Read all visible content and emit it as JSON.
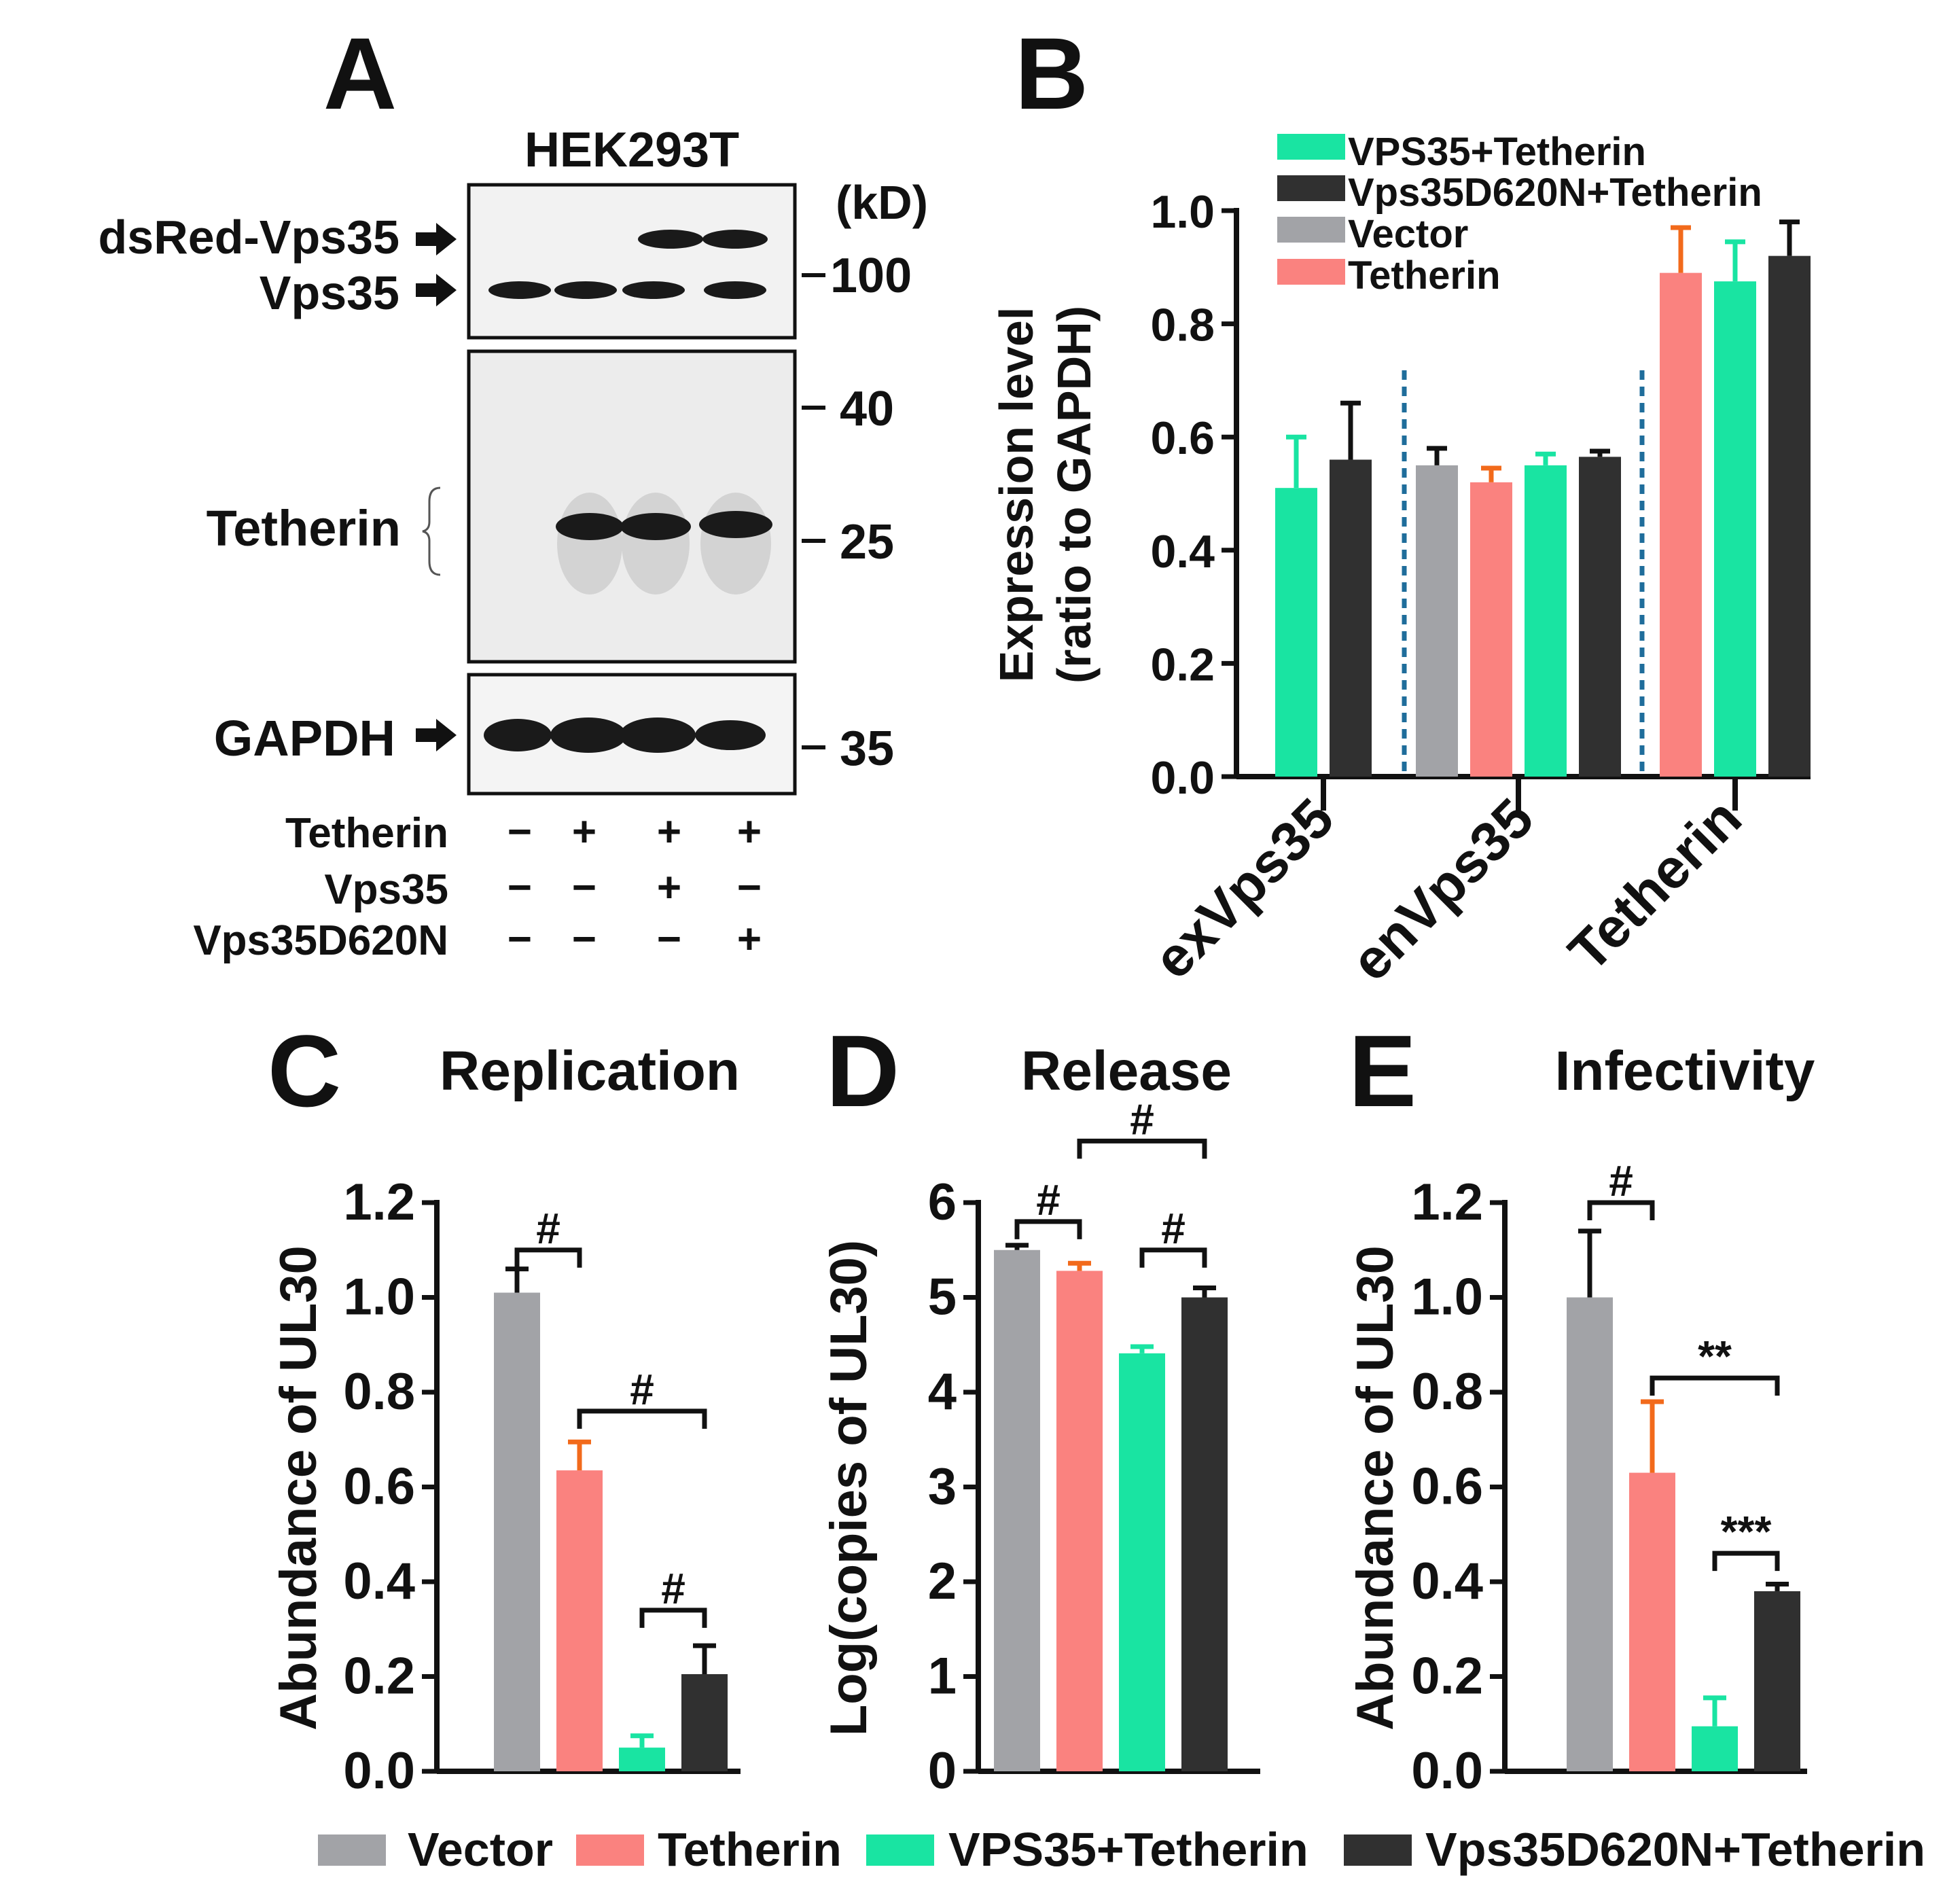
{
  "colors": {
    "vector": "#a2a3a7",
    "tetherin": "#fa827f",
    "vps35": "#19e4a2",
    "d620n": "#303030",
    "divider": "#1f6d9b",
    "errorbar_tetherin": "#f26a1b"
  },
  "western": {
    "panel_letter": "A",
    "cell_line": "HEK293T",
    "unit": "(kD)",
    "bands": {
      "dsred": "dsRed-Vps35",
      "vps35": "Vps35",
      "tetherin": "Tetherin",
      "gapdh": "GAPDH"
    },
    "markers": [
      "100",
      "40",
      "25",
      "35"
    ],
    "conditions": [
      {
        "name": "Tetherin",
        "signs": [
          "−",
          "+",
          "+",
          "+"
        ]
      },
      {
        "name": "Vps35",
        "signs": [
          "−",
          "−",
          "+",
          "−"
        ]
      },
      {
        "name": "Vps35D620N",
        "signs": [
          "−",
          "−",
          "−",
          "+"
        ]
      }
    ]
  },
  "legend_bottom": [
    "Vector",
    "Tetherin",
    "VPS35+Tetherin",
    "Vps35D620N+Tetherin"
  ],
  "chart_data": [
    {
      "panel": "B",
      "type": "bar",
      "title": "",
      "xlabel": "",
      "ylabel": "Expression level",
      "ylabel2": "(ratio to GAPDH)",
      "ylim": [
        0,
        1.0
      ],
      "yticks": [
        "0.0",
        "0.2",
        "0.4",
        "0.6",
        "0.8",
        "1.0"
      ],
      "legend": [
        "VPS35+Tetherin",
        "Vps35D620N+Tetherin",
        "Vector",
        "Tetherin"
      ],
      "categories": [
        "exVps35",
        "enVps35",
        "Tetherin"
      ],
      "groups": [
        {
          "category": "exVps35",
          "bars": [
            {
              "series": "VPS35+Tetherin",
              "value": 0.51,
              "error": 0.09
            },
            {
              "series": "Vps35D620N+Tetherin",
              "value": 0.56,
              "error": 0.1
            }
          ]
        },
        {
          "category": "enVps35",
          "bars": [
            {
              "series": "Vector",
              "value": 0.55,
              "error": 0.03
            },
            {
              "series": "Tetherin",
              "value": 0.52,
              "error": 0.025
            },
            {
              "series": "VPS35+Tetherin",
              "value": 0.55,
              "error": 0.02
            },
            {
              "series": "Vps35D620N+Tetherin",
              "value": 0.565,
              "error": 0.01
            }
          ]
        },
        {
          "category": "Tetherin",
          "bars": [
            {
              "series": "Tetherin",
              "value": 0.89,
              "error": 0.08
            },
            {
              "series": "VPS35+Tetherin",
              "value": 0.875,
              "error": 0.07
            },
            {
              "series": "Vps35D620N+Tetherin",
              "value": 0.92,
              "error": 0.06
            }
          ]
        }
      ]
    },
    {
      "panel": "C",
      "type": "bar",
      "title": "Replication",
      "xlabel": "",
      "ylabel": "Abundance of UL30",
      "ylim": [
        0,
        1.2
      ],
      "yticks": [
        "0.0",
        "0.2",
        "0.4",
        "0.6",
        "0.8",
        "1.0",
        "1.2"
      ],
      "categories": [
        "Vector",
        "Tetherin",
        "VPS35+Tetherin",
        "Vps35D620N+Tetherin"
      ],
      "values": [
        1.01,
        0.635,
        0.05,
        0.205
      ],
      "errors": [
        0.05,
        0.06,
        0.025,
        0.06
      ],
      "significance": [
        {
          "from": 0,
          "to": 1,
          "label": "#",
          "level": 1.1
        },
        {
          "from": 1,
          "to": 3,
          "label": "#",
          "level": 0.76
        },
        {
          "from": 2,
          "to": 3,
          "label": "#",
          "level": 0.34
        }
      ]
    },
    {
      "panel": "D",
      "type": "bar",
      "title": "Release",
      "xlabel": "",
      "ylabel": "Log(copies of UL30)",
      "ylim": [
        0,
        6
      ],
      "yticks": [
        "0",
        "1",
        "2",
        "3",
        "4",
        "5",
        "6"
      ],
      "categories": [
        "Vector",
        "Tetherin",
        "VPS35+Tetherin",
        "Vps35D620N+Tetherin"
      ],
      "values": [
        5.5,
        5.28,
        4.41,
        5.0
      ],
      "errors": [
        0.05,
        0.08,
        0.07,
        0.1
      ],
      "significance": [
        {
          "from": 0,
          "to": 1,
          "label": "#",
          "level": 5.8
        },
        {
          "from": 1,
          "to": 3,
          "label": "#",
          "level": 6.65
        },
        {
          "from": 2,
          "to": 3,
          "label": "#",
          "level": 5.5
        }
      ]
    },
    {
      "panel": "E",
      "type": "bar",
      "title": "Infectivity",
      "xlabel": "",
      "ylabel": "Abundance of UL30",
      "ylim": [
        0,
        1.2
      ],
      "yticks": [
        "0.0",
        "0.2",
        "0.4",
        "0.6",
        "0.8",
        "1.0",
        "1.2"
      ],
      "categories": [
        "Vector",
        "Tetherin",
        "VPS35+Tetherin",
        "Vps35D620N+Tetherin"
      ],
      "values": [
        1.0,
        0.63,
        0.095,
        0.38
      ],
      "errors": [
        0.14,
        0.15,
        0.06,
        0.015
      ],
      "significance": [
        {
          "from": 0,
          "to": 1,
          "label": "#",
          "level": 1.2
        },
        {
          "from": 1,
          "to": 3,
          "label": "**",
          "level": 0.83
        },
        {
          "from": 2,
          "to": 3,
          "label": "***",
          "level": 0.46
        }
      ]
    }
  ]
}
